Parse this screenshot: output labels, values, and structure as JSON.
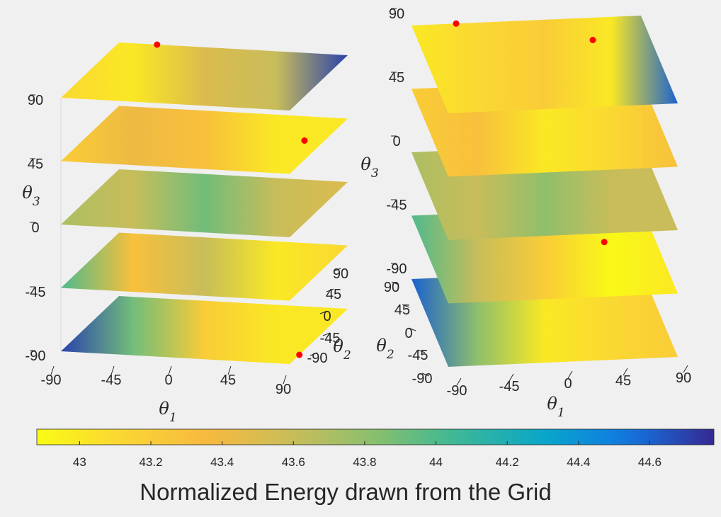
{
  "chart_data": {
    "type": "volumetric-slice",
    "value_name": "Normalized Energy drawn from the Grid",
    "colormap": "parula-reversed",
    "color_range": [
      42.88,
      44.78
    ],
    "colorbar": {
      "orientation": "horizontal",
      "placement": "bottom",
      "ticks": [
        "43",
        "43.2",
        "43.4",
        "43.6",
        "43.8",
        "44",
        "44.2",
        "44.4",
        "44.6"
      ],
      "title": "Normalized Energy drawn from the Grid"
    },
    "panels": [
      {
        "id": "left",
        "view": "θ1 toward viewer, θ2 receding right",
        "theta1_label": "θ",
        "theta1_sub": "1",
        "theta2_label": "θ",
        "theta2_sub": "2",
        "theta3_label": "θ",
        "theta3_sub": "3",
        "theta1_ticks": [
          "-90",
          "-45",
          "0",
          "45",
          "90"
        ],
        "theta2_ticks": [
          "-90",
          "-45",
          "0",
          "45",
          "90"
        ],
        "theta3_ticks": [
          "-90",
          "-45",
          "0",
          "45",
          "90"
        ],
        "theta_range": [
          -90,
          90
        ],
        "slices": [
          -90,
          -45,
          0,
          45,
          90
        ],
        "minima": [
          {
            "theta1": -60,
            "theta2": 90,
            "theta3": 90
          },
          {
            "theta1": 75,
            "theta2": 15,
            "theta3": 45
          },
          {
            "theta1": 90,
            "theta2": -60,
            "theta3": -90
          }
        ]
      },
      {
        "id": "right",
        "view": "θ1 toward viewer, θ2 receding left",
        "theta1_label": "θ",
        "theta1_sub": "1",
        "theta2_label": "θ",
        "theta2_sub": "2",
        "theta3_label": "θ",
        "theta3_sub": "3",
        "theta1_ticks": [
          "-90",
          "-45",
          "0",
          "45",
          "90"
        ],
        "theta2_ticks": [
          "-90",
          "-45",
          "0",
          "45",
          "90"
        ],
        "theta3_ticks": [
          "-90",
          "-45",
          "0",
          "45",
          "90"
        ],
        "theta_range": [
          -90,
          90
        ],
        "slices": [
          -90,
          -45,
          0,
          45,
          90
        ],
        "minima": [
          {
            "theta1": -55,
            "theta2": 90,
            "theta3": 90
          },
          {
            "theta1": 45,
            "theta2": 45,
            "theta3": 90
          },
          {
            "theta1": 50,
            "theta2": 20,
            "theta3": -45
          }
        ]
      }
    ]
  },
  "colors": {
    "background": "#f0f0f0",
    "marker": "#ff0000",
    "axis": "#262626",
    "gridline": "#d9d9d9"
  }
}
